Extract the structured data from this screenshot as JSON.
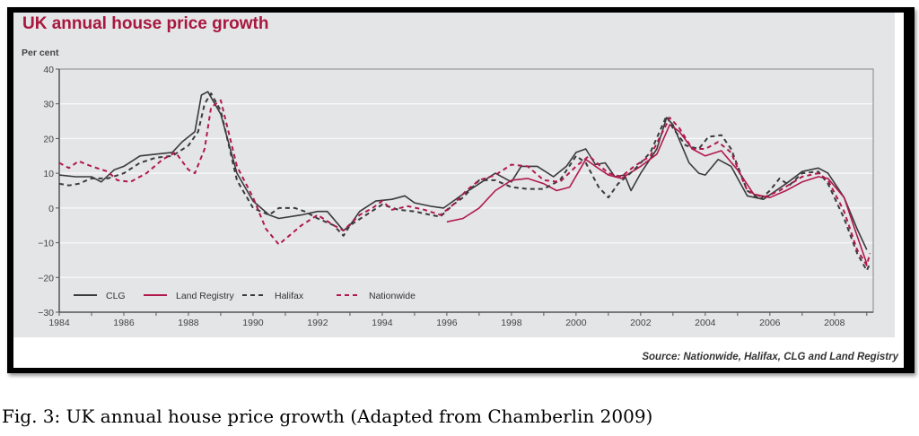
{
  "chart_data": {
    "type": "line",
    "title": "UK annual house price growth",
    "ylabel": "Per cent",
    "xlabel": "",
    "xlim": [
      1984,
      2009.2
    ],
    "ylim": [
      -30,
      40
    ],
    "yticks": [
      40,
      30,
      20,
      10,
      0,
      -10,
      -20,
      -30
    ],
    "xticks": [
      1984,
      1986,
      1988,
      1990,
      1992,
      1994,
      1996,
      1998,
      2000,
      2002,
      2004,
      2006,
      2008
    ],
    "grid": true,
    "legend_position": "bottom-left",
    "source": "Source: Nationwide, Halifax, CLG and Land Registry",
    "series": [
      {
        "name": "CLG",
        "color": "#3a3a3a",
        "dash": false,
        "points": [
          [
            1984,
            9.5
          ],
          [
            1984.5,
            9
          ],
          [
            1985,
            9
          ],
          [
            1985.3,
            7.5
          ],
          [
            1985.7,
            11
          ],
          [
            1986,
            12
          ],
          [
            1986.5,
            15
          ],
          [
            1987,
            15.5
          ],
          [
            1987.5,
            16
          ],
          [
            1987.8,
            19
          ],
          [
            1988.2,
            22
          ],
          [
            1988.4,
            32.5
          ],
          [
            1988.6,
            33.5
          ],
          [
            1989,
            27
          ],
          [
            1989.5,
            10
          ],
          [
            1990,
            2
          ],
          [
            1990.5,
            -2
          ],
          [
            1990.8,
            -3
          ],
          [
            1991.5,
            -2
          ],
          [
            1992,
            -1
          ],
          [
            1992.3,
            -1
          ],
          [
            1992.8,
            -6.5
          ],
          [
            1993,
            -5
          ],
          [
            1993.3,
            -1
          ],
          [
            1993.8,
            2
          ],
          [
            1994.3,
            2.5
          ],
          [
            1994.7,
            3.5
          ],
          [
            1995,
            1.5
          ],
          [
            1995.5,
            0.5
          ],
          [
            1995.9,
            0
          ],
          [
            1996.2,
            2
          ],
          [
            1996.5,
            4
          ],
          [
            1997,
            7
          ],
          [
            1997.5,
            10
          ],
          [
            1998,
            7.5
          ],
          [
            1998.3,
            12
          ],
          [
            1998.8,
            12
          ],
          [
            1999.3,
            9
          ],
          [
            1999.7,
            12
          ],
          [
            2000,
            16
          ],
          [
            2000.3,
            17
          ],
          [
            2000.6,
            12.5
          ],
          [
            2000.9,
            13
          ],
          [
            2001.2,
            9
          ],
          [
            2001.5,
            9.5
          ],
          [
            2001.7,
            5
          ],
          [
            2002,
            10
          ],
          [
            2002.5,
            17
          ],
          [
            2002.8,
            26
          ],
          [
            2003,
            24
          ],
          [
            2003.5,
            13
          ],
          [
            2003.8,
            10
          ],
          [
            2004,
            9.5
          ],
          [
            2004.4,
            14
          ],
          [
            2004.8,
            12
          ],
          [
            2005.3,
            3.5
          ],
          [
            2005.8,
            2.5
          ],
          [
            2006.5,
            7
          ],
          [
            2007,
            10.5
          ],
          [
            2007.5,
            11.5
          ],
          [
            2007.8,
            10
          ],
          [
            2008.3,
            3
          ],
          [
            2008.7,
            -6
          ],
          [
            2009,
            -12
          ]
        ]
      },
      {
        "name": "Land Registry",
        "color": "#b0194a",
        "dash": false,
        "points": [
          [
            1996,
            -4
          ],
          [
            1996.5,
            -3
          ],
          [
            1997,
            0
          ],
          [
            1997.5,
            5
          ],
          [
            1998,
            8
          ],
          [
            1998.5,
            8.5
          ],
          [
            1999,
            7
          ],
          [
            1999.4,
            5
          ],
          [
            1999.8,
            6
          ],
          [
            2000.3,
            14
          ],
          [
            2000.6,
            12
          ],
          [
            2001,
            9.5
          ],
          [
            2001.4,
            8.5
          ],
          [
            2002,
            12
          ],
          [
            2002.5,
            15.5
          ],
          [
            2002.9,
            24
          ],
          [
            2003.2,
            22
          ],
          [
            2003.6,
            17
          ],
          [
            2004,
            15
          ],
          [
            2004.5,
            16.5
          ],
          [
            2005,
            11
          ],
          [
            2005.5,
            4
          ],
          [
            2006,
            3
          ],
          [
            2006.5,
            5
          ],
          [
            2007,
            7.5
          ],
          [
            2007.5,
            9
          ],
          [
            2007.8,
            8.5
          ],
          [
            2008.3,
            3
          ],
          [
            2008.7,
            -8
          ],
          [
            2009,
            -16
          ]
        ]
      },
      {
        "name": "Halifax",
        "color": "#3a3a3a",
        "dash": true,
        "points": [
          [
            1984,
            7
          ],
          [
            1984.3,
            6.5
          ],
          [
            1984.6,
            7
          ],
          [
            1985,
            8.5
          ],
          [
            1985.5,
            8.5
          ],
          [
            1986,
            10
          ],
          [
            1986.5,
            13
          ],
          [
            1987,
            14.5
          ],
          [
            1987.5,
            15
          ],
          [
            1988,
            18
          ],
          [
            1988.3,
            22
          ],
          [
            1988.5,
            30
          ],
          [
            1988.7,
            33
          ],
          [
            1989,
            28
          ],
          [
            1989.5,
            8
          ],
          [
            1990,
            0
          ],
          [
            1990.5,
            -2
          ],
          [
            1990.8,
            0
          ],
          [
            1991.3,
            0
          ],
          [
            1991.6,
            -1
          ],
          [
            1992,
            -3
          ],
          [
            1992.5,
            -5
          ],
          [
            1992.8,
            -8
          ],
          [
            1993,
            -5
          ],
          [
            1993.5,
            -2
          ],
          [
            1994,
            1
          ],
          [
            1994.5,
            -0.5
          ],
          [
            1995,
            -1
          ],
          [
            1995.5,
            -2
          ],
          [
            1995.8,
            -2.5
          ],
          [
            1996.2,
            1
          ],
          [
            1996.5,
            3
          ],
          [
            1997,
            8
          ],
          [
            1997.5,
            8
          ],
          [
            1998,
            6
          ],
          [
            1998.5,
            5.5
          ],
          [
            1999,
            5.5
          ],
          [
            1999.5,
            8
          ],
          [
            2000,
            15
          ],
          [
            2000.3,
            13
          ],
          [
            2000.7,
            6
          ],
          [
            2001,
            3
          ],
          [
            2001.3,
            7
          ],
          [
            2001.8,
            11
          ],
          [
            2002.3,
            16
          ],
          [
            2002.8,
            26.5
          ],
          [
            2003,
            23
          ],
          [
            2003.4,
            18
          ],
          [
            2003.8,
            17
          ],
          [
            2004.1,
            20.5
          ],
          [
            2004.5,
            21
          ],
          [
            2004.8,
            17
          ],
          [
            2005.3,
            5
          ],
          [
            2005.7,
            2.5
          ],
          [
            2006,
            5
          ],
          [
            2006.3,
            8.5
          ],
          [
            2006.6,
            6.5
          ],
          [
            2007,
            10
          ],
          [
            2007.5,
            10.5
          ],
          [
            2007.8,
            7
          ],
          [
            2008.3,
            -3
          ],
          [
            2008.7,
            -13
          ],
          [
            2009,
            -18
          ],
          [
            2009.1,
            -16
          ]
        ]
      },
      {
        "name": "Nationwide",
        "color": "#b0194a",
        "dash": true,
        "points": [
          [
            1984,
            13
          ],
          [
            1984.3,
            11.5
          ],
          [
            1984.6,
            13.5
          ],
          [
            1985,
            12
          ],
          [
            1985.5,
            10.5
          ],
          [
            1985.8,
            8
          ],
          [
            1986.2,
            7.5
          ],
          [
            1986.7,
            10
          ],
          [
            1987.2,
            14
          ],
          [
            1987.6,
            16
          ],
          [
            1988,
            11
          ],
          [
            1988.2,
            10
          ],
          [
            1988.5,
            17
          ],
          [
            1988.7,
            29
          ],
          [
            1989,
            31
          ],
          [
            1989.5,
            12
          ],
          [
            1990,
            3
          ],
          [
            1990.4,
            -6
          ],
          [
            1990.8,
            -10.5
          ],
          [
            1991.5,
            -5
          ],
          [
            1992,
            -2
          ],
          [
            1992.5,
            -5
          ],
          [
            1992.8,
            -6.5
          ],
          [
            1993.3,
            -2
          ],
          [
            1993.7,
            0
          ],
          [
            1994,
            2
          ],
          [
            1994.3,
            -0.5
          ],
          [
            1994.8,
            0.5
          ],
          [
            1995.3,
            -0.5
          ],
          [
            1995.8,
            -2
          ],
          [
            1996.2,
            1
          ],
          [
            1996.6,
            5
          ],
          [
            1997,
            8
          ],
          [
            1997.5,
            9.5
          ],
          [
            1998,
            12.5
          ],
          [
            1998.5,
            12
          ],
          [
            1999,
            8
          ],
          [
            1999.5,
            7.5
          ],
          [
            2000,
            12
          ],
          [
            2000.4,
            15
          ],
          [
            2000.7,
            12.5
          ],
          [
            2001,
            10
          ],
          [
            2001.4,
            9
          ],
          [
            2001.8,
            12
          ],
          [
            2002.3,
            15
          ],
          [
            2002.9,
            26
          ],
          [
            2003.2,
            23
          ],
          [
            2003.6,
            17
          ],
          [
            2004,
            17
          ],
          [
            2004.4,
            19
          ],
          [
            2004.8,
            16
          ],
          [
            2005.3,
            5
          ],
          [
            2005.8,
            3
          ],
          [
            2006.3,
            5
          ],
          [
            2007,
            9
          ],
          [
            2007.5,
            10
          ],
          [
            2007.8,
            8
          ],
          [
            2008.3,
            -1
          ],
          [
            2008.7,
            -12
          ],
          [
            2009,
            -16.5
          ],
          [
            2009.1,
            -13
          ]
        ]
      }
    ]
  },
  "caption": "Fig. 3: UK annual house price growth (Adapted from Chamberlin 2009)"
}
